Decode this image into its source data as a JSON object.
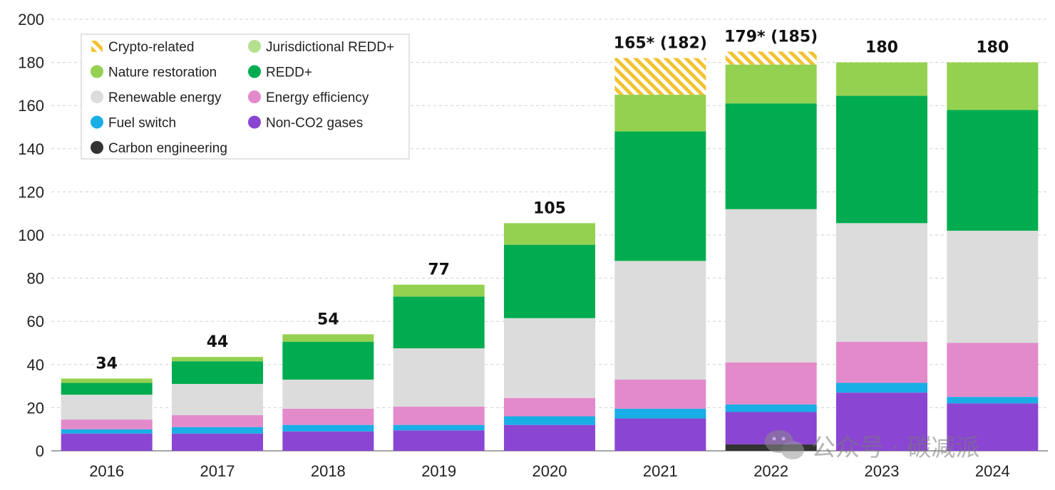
{
  "chart_data": {
    "type": "bar",
    "stacked": true,
    "ylim": [
      0,
      200
    ],
    "yticks": [
      0,
      20,
      40,
      60,
      80,
      100,
      120,
      140,
      160,
      180,
      200
    ],
    "grid": "horizontal-dashed",
    "legend_position": "top-left",
    "categories": [
      "2016",
      "2017",
      "2018",
      "2019",
      "2020",
      "2021",
      "2022",
      "2023",
      "2024"
    ],
    "totals": [
      "34",
      "44",
      "54",
      "77",
      "105",
      "165* (182)",
      "179* (185)",
      "180",
      "180"
    ],
    "series": [
      {
        "name": "Carbon engineering",
        "color": "#333333",
        "values": [
          0,
          0,
          0,
          0,
          0,
          0,
          3,
          0,
          0
        ]
      },
      {
        "name": "Non-CO2 gases",
        "color": "#8a46d2",
        "values": [
          8,
          8,
          9,
          9.5,
          12,
          15,
          15,
          27,
          22
        ]
      },
      {
        "name": "Fuel switch",
        "color": "#1aaee6",
        "values": [
          2,
          3,
          3,
          2.5,
          4,
          4.5,
          3.5,
          4.5,
          3
        ]
      },
      {
        "name": "Energy efficiency",
        "color": "#e38acb",
        "values": [
          4.5,
          5.5,
          7.5,
          8.5,
          8.5,
          13.5,
          19.5,
          19,
          25
        ]
      },
      {
        "name": "Renewable energy",
        "color": "#dcdcdc",
        "values": [
          11.5,
          14.5,
          13.5,
          27,
          37,
          55,
          71,
          55,
          52
        ]
      },
      {
        "name": "REDD+",
        "color": "#00ac4f",
        "values": [
          5.5,
          10.5,
          17.5,
          24,
          34,
          60,
          49,
          59,
          56
        ]
      },
      {
        "name": "Jurisdictional REDD+",
        "color": "#b5e08f",
        "values": [
          0,
          0,
          0,
          0,
          0,
          0,
          0,
          0,
          0
        ]
      },
      {
        "name": "Nature restoration",
        "color": "#95d150",
        "values": [
          2,
          2,
          3.5,
          5.5,
          10,
          17,
          18,
          15.5,
          22
        ]
      },
      {
        "name": "Crypto-related",
        "color": "#f2c230",
        "pattern": "hatched",
        "values": [
          0,
          0,
          0,
          0,
          0,
          17,
          6,
          0,
          0
        ]
      }
    ]
  },
  "legend": [
    {
      "label": "Crypto-related",
      "color": "#f2c230",
      "icon": "hatched-square-icon"
    },
    {
      "label": "Jurisdictional REDD+",
      "color": "#b5e08f",
      "icon": "circle-icon"
    },
    {
      "label": "Nature restoration",
      "color": "#95d150",
      "icon": "circle-icon"
    },
    {
      "label": "REDD+",
      "color": "#00ac4f",
      "icon": "circle-icon"
    },
    {
      "label": "Renewable energy",
      "color": "#dcdcdc",
      "icon": "circle-icon"
    },
    {
      "label": "Energy efficiency",
      "color": "#e38acb",
      "icon": "circle-icon"
    },
    {
      "label": "Fuel switch",
      "color": "#1aaee6",
      "icon": "circle-icon"
    },
    {
      "label": "Non-CO2 gases",
      "color": "#8a46d2",
      "icon": "circle-icon"
    },
    {
      "label": "Carbon engineering",
      "color": "#333333",
      "icon": "circle-icon"
    }
  ],
  "watermark": {
    "text": "公众号 · 碳减派",
    "icon": "wechat-icon"
  }
}
